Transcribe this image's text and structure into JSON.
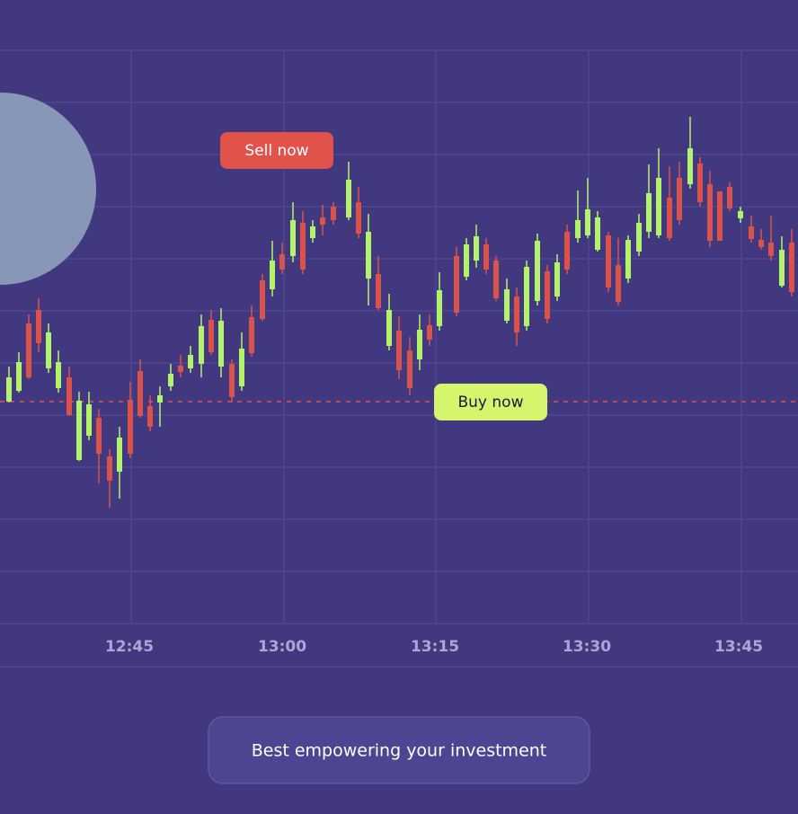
{
  "buttons": {
    "sell": "Sell now",
    "buy": "Buy now"
  },
  "time_axis": {
    "labels": [
      "12:45",
      "13:00",
      "13:15",
      "13:30",
      "13:45"
    ]
  },
  "tagline": "Best empowering your investment"
}
